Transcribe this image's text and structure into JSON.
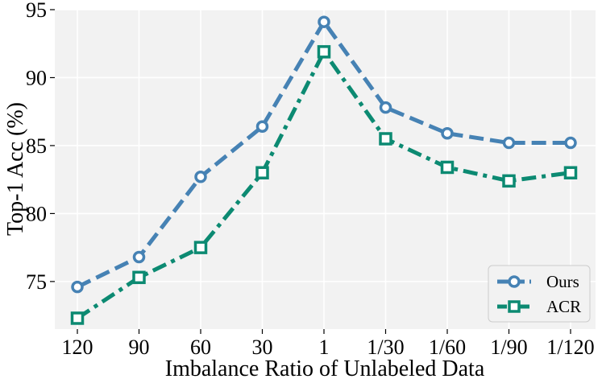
{
  "chart_data": {
    "type": "line",
    "title": "",
    "xlabel": "Imbalance Ratio of Unlabeled Data",
    "ylabel": "Top-1 Acc (%)",
    "categories": [
      "120",
      "90",
      "60",
      "30",
      "1",
      "1/30",
      "1/60",
      "1/90",
      "1/120"
    ],
    "yticks": [
      "75",
      "80",
      "85",
      "90",
      "95"
    ],
    "ylim": [
      71.5,
      95
    ],
    "grid": true,
    "legend_position": "bottom-right",
    "series": [
      {
        "name": "Ours",
        "values": [
          74.6,
          76.8,
          82.7,
          86.4,
          94.1,
          87.8,
          85.9,
          85.2,
          85.2
        ],
        "color": "#4682b4",
        "marker": "circle",
        "line_style": "dashed"
      },
      {
        "name": "ACR",
        "values": [
          72.3,
          75.3,
          77.5,
          83.0,
          91.9,
          85.5,
          83.4,
          82.4,
          83.0
        ],
        "color": "#0c8a72",
        "marker": "square",
        "line_style": "dashdot"
      }
    ]
  }
}
